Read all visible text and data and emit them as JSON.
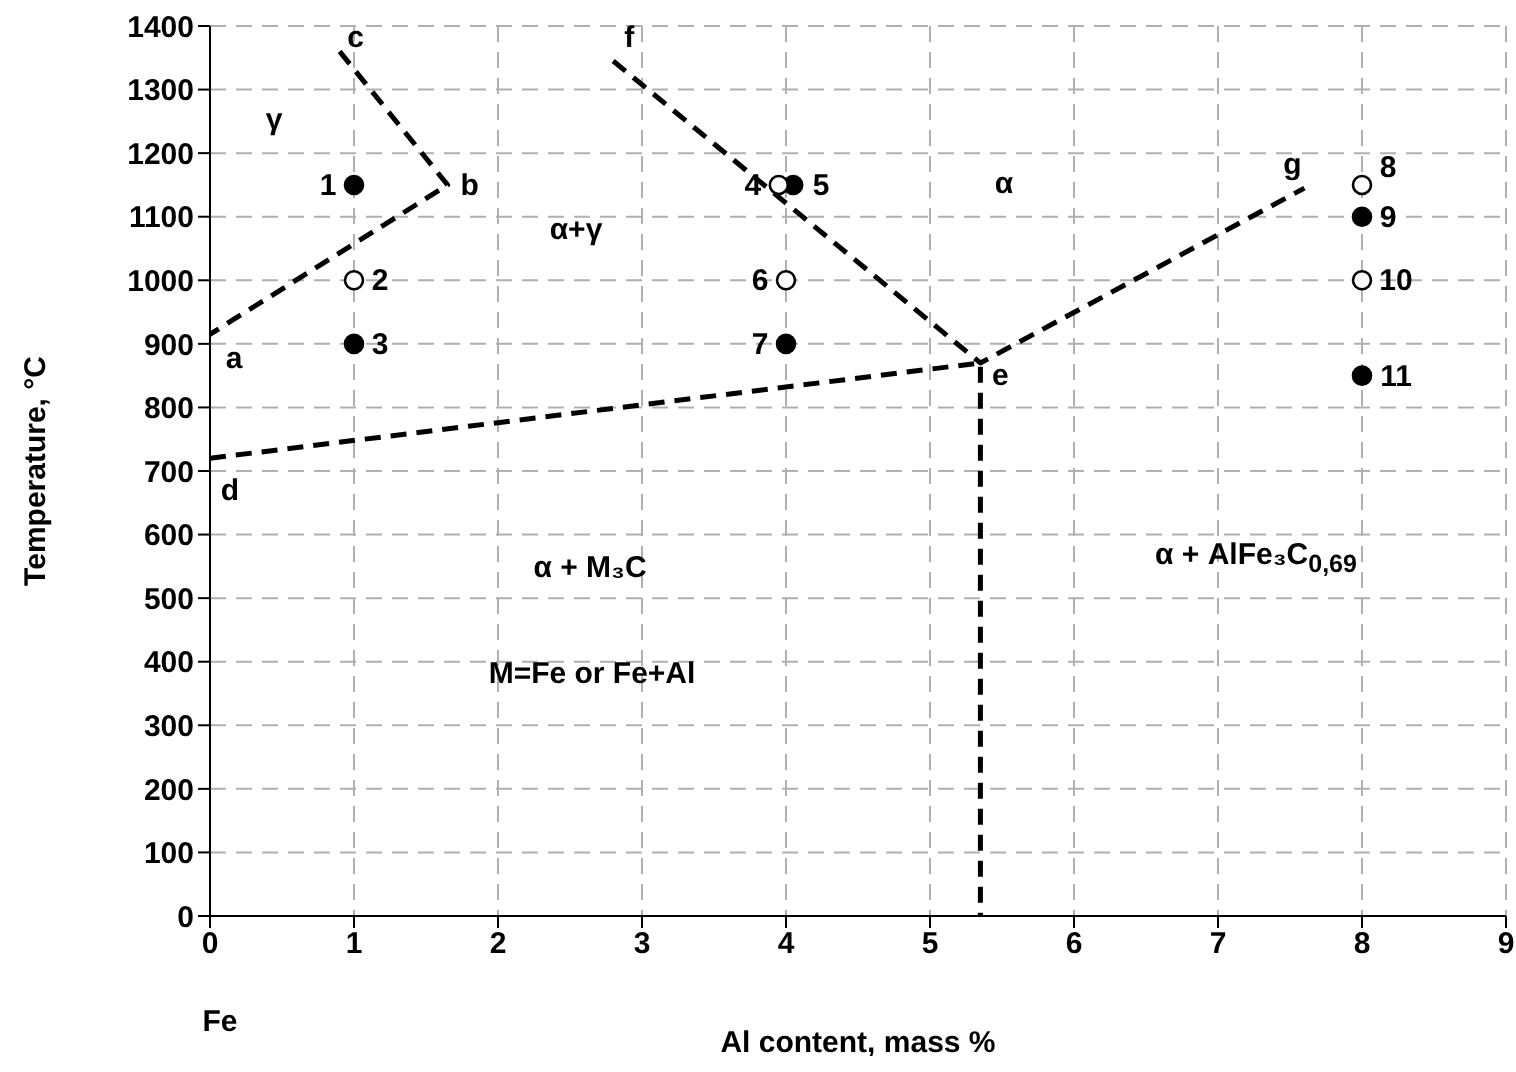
{
  "chart_data": {
    "type": "scatter",
    "xlabel": "Al content, mass %",
    "ylabel": "Temperature, °C",
    "xlim": [
      0,
      9
    ],
    "xticks": [
      0,
      1,
      2,
      3,
      4,
      5,
      6,
      7,
      8,
      9
    ],
    "ylim": [
      0,
      1400
    ],
    "yticks": [
      0,
      100,
      200,
      300,
      400,
      500,
      600,
      700,
      800,
      900,
      1000,
      1100,
      1200,
      1300,
      1400
    ],
    "grid": true,
    "line_style": "dashed",
    "series": [
      {
        "type": "line",
        "color": "#000000",
        "marker": "none",
        "x": [
          0.9,
          1.65,
          0
        ],
        "values": [
          1360,
          1150,
          915
        ]
      },
      {
        "type": "line",
        "color": "#000000",
        "marker": "none",
        "x": [
          2.8,
          5.35,
          7.6
        ],
        "values": [
          1345,
          870,
          1145
        ]
      },
      {
        "type": "line",
        "color": "#000000",
        "marker": "none",
        "x": [
          0,
          5.35,
          5.35
        ],
        "values": [
          720,
          870,
          0
        ]
      },
      {
        "type": "scatter",
        "color": "#000000",
        "marker": "circle",
        "x": [
          1,
          1,
          4.05,
          4,
          8,
          8
        ],
        "values": [
          1150,
          900,
          1150,
          900,
          1100,
          850
        ]
      },
      {
        "type": "scatter",
        "color": "#ffffff",
        "marker": "circle",
        "x": [
          1,
          3.95,
          4,
          8,
          8
        ],
        "values": [
          1000,
          1150,
          1000,
          1150,
          1000
        ]
      }
    ],
    "annotations": [
      {
        "text": "1",
        "x": 1,
        "y": 1150
      },
      {
        "text": "2",
        "x": 1,
        "y": 1000
      },
      {
        "text": "3",
        "x": 1,
        "y": 900
      },
      {
        "text": "4",
        "x": 3.95,
        "y": 1150
      },
      {
        "text": "5",
        "x": 4.05,
        "y": 1150
      },
      {
        "text": "6",
        "x": 4,
        "y": 1000
      },
      {
        "text": "7",
        "x": 4,
        "y": 900
      },
      {
        "text": "8",
        "x": 8,
        "y": 1150
      },
      {
        "text": "9",
        "x": 8,
        "y": 1100
      },
      {
        "text": "10",
        "x": 8,
        "y": 1000
      },
      {
        "text": "11",
        "x": 8,
        "y": 850
      },
      {
        "text": "a",
        "x": 0,
        "y": 915
      },
      {
        "text": "b",
        "x": 1.65,
        "y": 1150
      },
      {
        "text": "c",
        "x": 0.9,
        "y": 1360
      },
      {
        "text": "d",
        "x": 0,
        "y": 720
      },
      {
        "text": "e",
        "x": 5.35,
        "y": 870
      },
      {
        "text": "f",
        "x": 2.8,
        "y": 1345
      },
      {
        "text": "g",
        "x": 7.6,
        "y": 1145
      },
      "γ",
      "α+γ",
      "α",
      "α + M₃C",
      "M=Fe or Fe+Al",
      "α + AlFe₃C$_{0,69}$",
      "Fe"
    ]
  }
}
